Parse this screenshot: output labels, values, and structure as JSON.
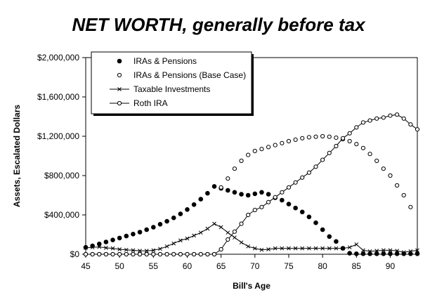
{
  "chart_data": {
    "type": "line",
    "title": "NET WORTH, generally before tax",
    "xlabel": "Bill's Age",
    "ylabel": "Assets, Escalated Dollars",
    "xlim": [
      45,
      94
    ],
    "ylim": [
      0,
      2000000
    ],
    "x_ticks": [
      45,
      50,
      55,
      60,
      65,
      70,
      75,
      80,
      85,
      90
    ],
    "y_ticks": [
      0,
      400000,
      800000,
      1200000,
      1600000,
      2000000
    ],
    "y_tick_labels": [
      "$0",
      "$400,000",
      "$800,000",
      "$1,200,000",
      "$1,600,000",
      "$2,000,000"
    ],
    "grid": false,
    "legend_position": "top-left",
    "x": [
      45,
      46,
      47,
      48,
      49,
      50,
      51,
      52,
      53,
      54,
      55,
      56,
      57,
      58,
      59,
      60,
      61,
      62,
      63,
      64,
      65,
      66,
      67,
      68,
      69,
      70,
      71,
      72,
      73,
      74,
      75,
      76,
      77,
      78,
      79,
      80,
      81,
      82,
      83,
      84,
      85,
      86,
      87,
      88,
      89,
      90,
      91,
      92,
      93,
      94
    ],
    "series": [
      {
        "name": "IRAs & Pensions",
        "marker": "filled-circle",
        "line": false,
        "values": [
          70000,
          85000,
          105000,
          125000,
          145000,
          165000,
          185000,
          205000,
          225000,
          250000,
          275000,
          305000,
          335000,
          370000,
          410000,
          455000,
          505000,
          560000,
          620000,
          690000,
          670000,
          650000,
          630000,
          610000,
          600000,
          615000,
          630000,
          610000,
          575000,
          550000,
          510000,
          470000,
          430000,
          380000,
          320000,
          250000,
          180000,
          130000,
          60000,
          10000,
          5000,
          5000,
          5000,
          5000,
          5000,
          5000,
          5000,
          5000,
          5000,
          5000
        ]
      },
      {
        "name": "IRAs & Pensions (Base Case)",
        "marker": "open-circle",
        "line": false,
        "values": [
          0,
          0,
          0,
          0,
          0,
          0,
          0,
          0,
          0,
          0,
          0,
          0,
          0,
          0,
          0,
          0,
          0,
          0,
          0,
          0,
          680000,
          770000,
          870000,
          950000,
          1010000,
          1050000,
          1070000,
          1090000,
          1110000,
          1130000,
          1150000,
          1165000,
          1180000,
          1190000,
          1195000,
          1200000,
          1195000,
          1185000,
          1170000,
          1150000,
          1120000,
          1080000,
          1020000,
          950000,
          870000,
          800000,
          700000,
          600000,
          480000,
          null
        ]
      },
      {
        "name": "Taxable Investments",
        "marker": "x",
        "line": true,
        "values": [
          65000,
          70000,
          75000,
          65000,
          60000,
          50000,
          45000,
          40000,
          35000,
          35000,
          40000,
          55000,
          80000,
          110000,
          140000,
          160000,
          190000,
          220000,
          260000,
          310000,
          275000,
          220000,
          170000,
          120000,
          80000,
          60000,
          45000,
          50000,
          60000,
          60000,
          60000,
          60000,
          60000,
          60000,
          60000,
          60000,
          60000,
          60000,
          60000,
          70000,
          100000,
          40000,
          30000,
          35000,
          40000,
          40000,
          35000,
          20000,
          30000,
          40000
        ]
      },
      {
        "name": "Roth IRA",
        "marker": "open-circle",
        "line": true,
        "values": [
          0,
          0,
          0,
          0,
          0,
          0,
          0,
          0,
          0,
          0,
          0,
          0,
          0,
          0,
          0,
          0,
          0,
          0,
          0,
          0,
          50000,
          150000,
          230000,
          310000,
          400000,
          450000,
          480000,
          530000,
          580000,
          630000,
          680000,
          730000,
          780000,
          830000,
          890000,
          960000,
          1030000,
          1100000,
          1180000,
          1230000,
          1290000,
          1340000,
          1360000,
          1380000,
          1390000,
          1410000,
          1420000,
          1380000,
          1320000,
          1270000
        ]
      }
    ]
  }
}
